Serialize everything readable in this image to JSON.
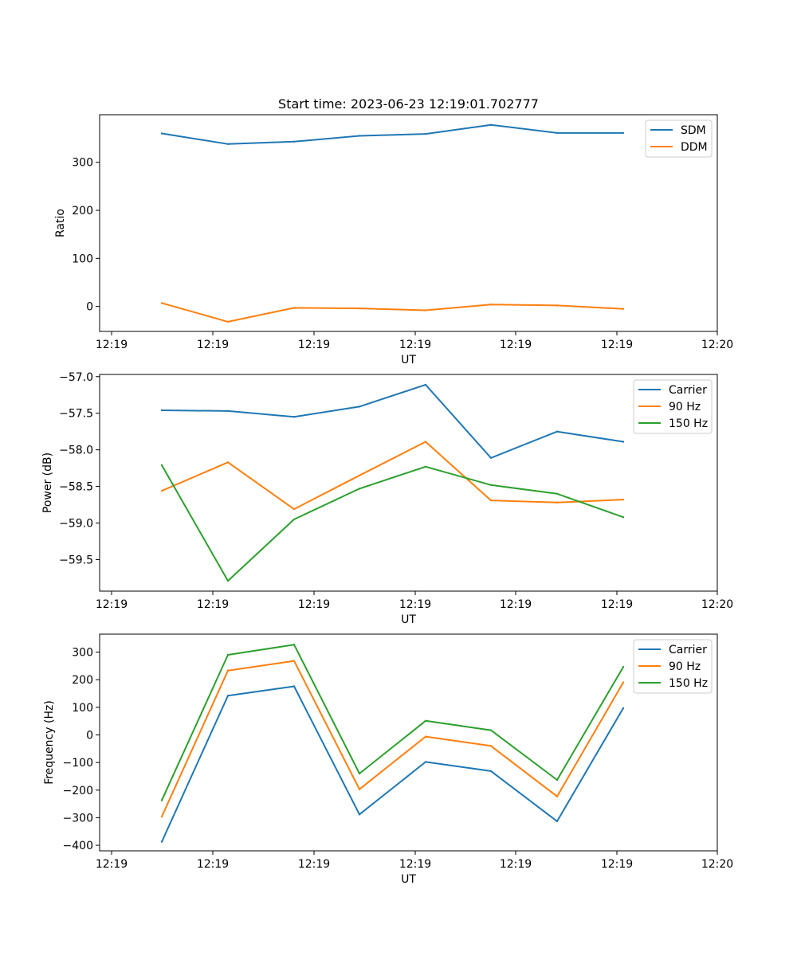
{
  "chart_data": [
    {
      "type": "line",
      "title": "Start time: 2023-06-23 12:19:01.702777",
      "xlabel": "UT",
      "ylabel": "Ratio",
      "x_tick_labels": [
        "12:19",
        "12:19",
        "12:19",
        "12:19",
        "12:19",
        "12:19",
        "12:20"
      ],
      "y_ticks": [
        0,
        100,
        200,
        300
      ],
      "y_tick_labels": [
        "0",
        "100",
        "200",
        "300"
      ],
      "ylim": [
        -52,
        399
      ],
      "legend": "top-right",
      "grid": false,
      "series": [
        {
          "name": "SDM",
          "color": "#1f77b4",
          "values": [
            360,
            338,
            343,
            355,
            359,
            378,
            361,
            361
          ]
        },
        {
          "name": "DDM",
          "color": "#ff7f0e",
          "values": [
            7,
            -32,
            -3,
            -4,
            -8,
            4,
            2,
            -5
          ]
        }
      ]
    },
    {
      "type": "line",
      "title": "",
      "xlabel": "UT",
      "ylabel": "Power (dB)",
      "x_tick_labels": [
        "12:19",
        "12:19",
        "12:19",
        "12:19",
        "12:19",
        "12:19",
        "12:20"
      ],
      "y_ticks": [
        -57.0,
        -57.5,
        -58.0,
        -58.5,
        -59.0,
        -59.5
      ],
      "y_tick_labels": [
        "−57.0",
        "−57.5",
        "−58.0",
        "−58.5",
        "−59.0",
        "−59.5"
      ],
      "ylim": [
        -59.93,
        -56.97
      ],
      "legend": "top-right",
      "grid": false,
      "series": [
        {
          "name": "Carrier",
          "color": "#1f77b4",
          "values": [
            -57.46,
            -57.47,
            -57.55,
            -57.41,
            -57.11,
            -58.11,
            -57.75,
            -57.89
          ]
        },
        {
          "name": "90 Hz",
          "color": "#ff7f0e",
          "values": [
            -58.56,
            -58.17,
            -58.81,
            -58.35,
            -57.89,
            -58.69,
            -58.72,
            -58.68
          ]
        },
        {
          "name": "150 Hz",
          "color": "#2ca02c",
          "values": [
            -58.21,
            -59.79,
            -58.95,
            -58.53,
            -58.23,
            -58.48,
            -58.6,
            -58.92
          ]
        }
      ]
    },
    {
      "type": "line",
      "title": "",
      "xlabel": "UT",
      "ylabel": "Frequency (Hz)",
      "x_tick_labels": [
        "12:19",
        "12:19",
        "12:19",
        "12:19",
        "12:19",
        "12:19",
        "12:20"
      ],
      "y_ticks": [
        -400,
        -300,
        -200,
        -100,
        0,
        100,
        200,
        300
      ],
      "y_tick_labels": [
        "−400",
        "−300",
        "−200",
        "−100",
        "0",
        "100",
        "200",
        "300"
      ],
      "ylim": [
        -420,
        365
      ],
      "legend": "top-right",
      "grid": false,
      "series": [
        {
          "name": "Carrier",
          "color": "#1f77b4",
          "values": [
            -387,
            142,
            176,
            -288,
            -98,
            -131,
            -313,
            97
          ]
        },
        {
          "name": "90 Hz",
          "color": "#ff7f0e",
          "values": [
            -296,
            233,
            268,
            -197,
            -6,
            -40,
            -223,
            190
          ]
        },
        {
          "name": "150 Hz",
          "color": "#2ca02c",
          "values": [
            -237,
            290,
            327,
            -140,
            51,
            17,
            -163,
            246
          ]
        }
      ]
    }
  ]
}
